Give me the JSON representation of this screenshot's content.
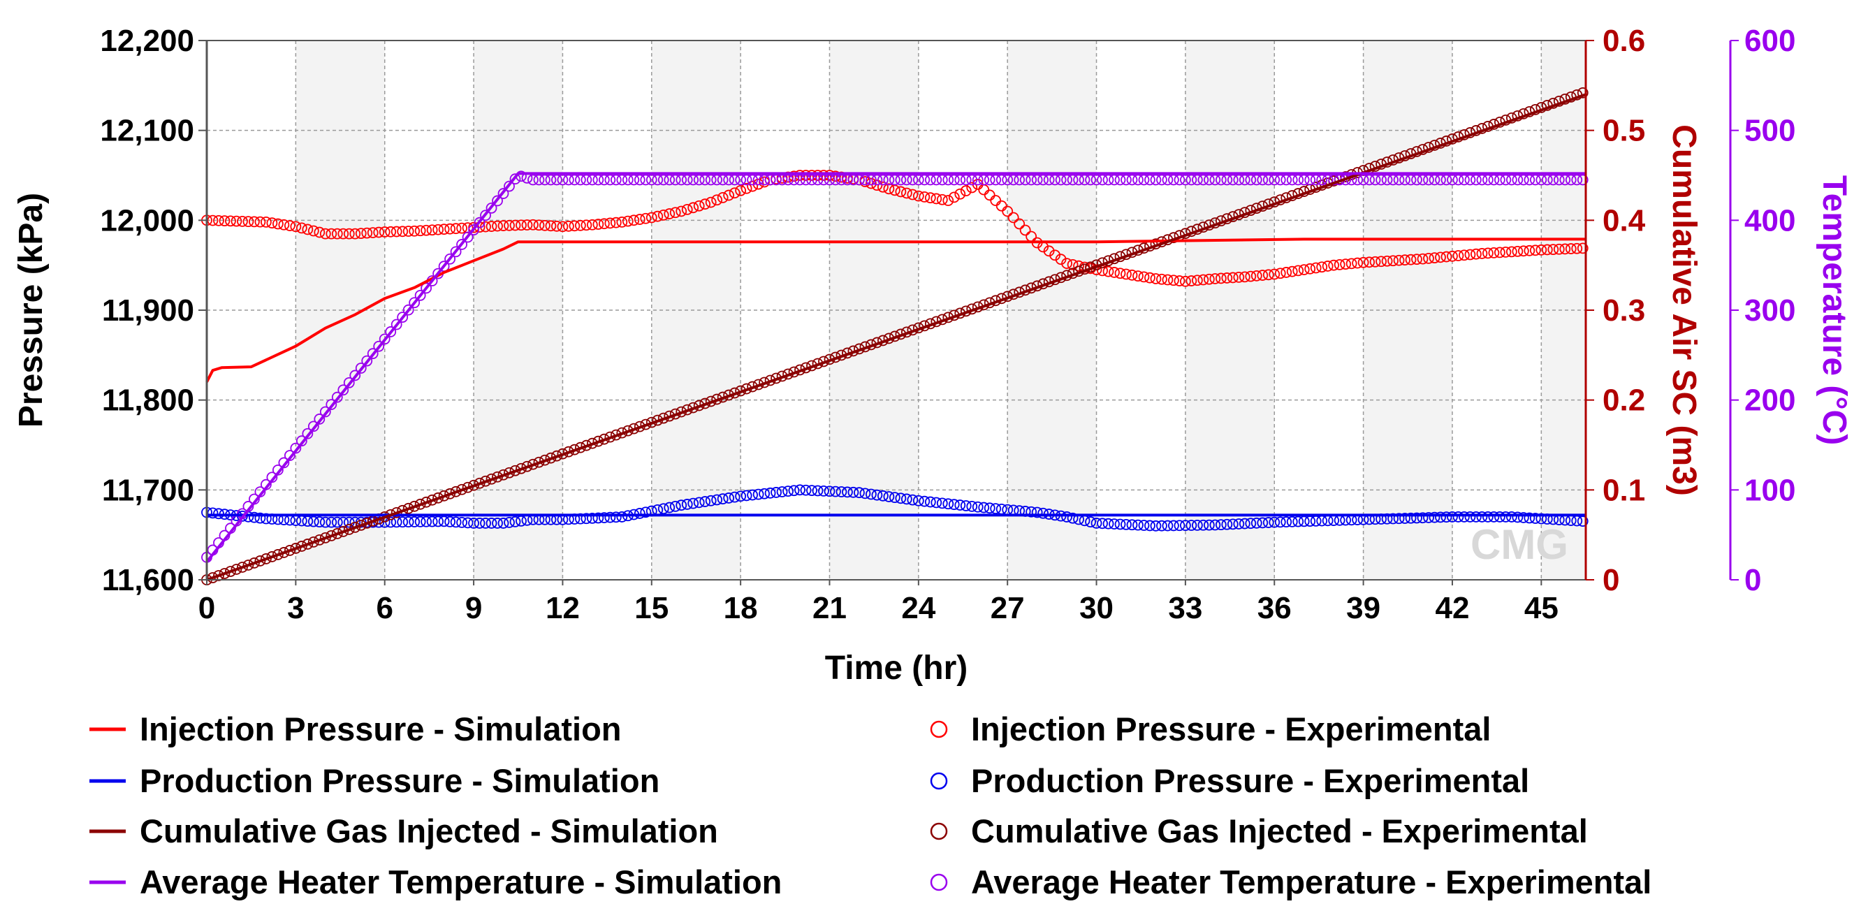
{
  "chart_data": {
    "type": "line",
    "watermark": "CMG",
    "x_axis": {
      "label": "Time (hr)",
      "range": [
        0,
        46.5
      ],
      "ticks": [
        0,
        3,
        6,
        9,
        12,
        15,
        18,
        21,
        24,
        27,
        30,
        33,
        36,
        39,
        42,
        45
      ]
    },
    "y_axes": [
      {
        "id": "pressure",
        "label": "Pressure (kPa)",
        "side": "left",
        "color": "#000000",
        "range": [
          11600,
          12200
        ],
        "ticks": [
          11600,
          11700,
          11800,
          11900,
          12000,
          12100,
          12200
        ],
        "tick_labels": [
          "11,600",
          "11,700",
          "11,800",
          "11,900",
          "12,000",
          "12,100",
          "12,200"
        ]
      },
      {
        "id": "air",
        "label": "Cumulative Air SC (m3)",
        "side": "right",
        "color": "#b00000",
        "range": [
          0,
          0.6
        ],
        "ticks": [
          0,
          0.1,
          0.2,
          0.3,
          0.4,
          0.5,
          0.6
        ],
        "tick_labels": [
          "0",
          "0.1",
          "0.2",
          "0.3",
          "0.4",
          "0.5",
          "0.6"
        ]
      },
      {
        "id": "temp",
        "label": "Temperature (°C)",
        "side": "right",
        "color": "#9900ee",
        "range": [
          0,
          600
        ],
        "ticks": [
          0,
          100,
          200,
          300,
          400,
          500,
          600
        ],
        "tick_labels": [
          "0",
          "100",
          "200",
          "300",
          "400",
          "500",
          "600"
        ]
      }
    ],
    "series": [
      {
        "name": "Injection Pressure - Simulation",
        "axis": "pressure",
        "style": "line",
        "color": "#ff0000",
        "points": [
          [
            0,
            11820
          ],
          [
            0.2,
            11833
          ],
          [
            0.5,
            11836
          ],
          [
            1.5,
            11837
          ],
          [
            3,
            11860
          ],
          [
            4,
            11880
          ],
          [
            5,
            11895
          ],
          [
            6,
            11913
          ],
          [
            7,
            11925
          ],
          [
            8,
            11942
          ],
          [
            9,
            11955
          ],
          [
            10,
            11968
          ],
          [
            10.5,
            11976
          ],
          [
            11,
            11976
          ],
          [
            30,
            11976
          ],
          [
            37,
            11979
          ],
          [
            46.5,
            11979
          ]
        ]
      },
      {
        "name": "Production Pressure - Simulation",
        "axis": "pressure",
        "style": "line",
        "color": "#0000ee",
        "points": [
          [
            0,
            11672
          ],
          [
            46.5,
            11672
          ]
        ]
      },
      {
        "name": "Cumulative Gas Injected - Simulation",
        "axis": "air",
        "style": "line",
        "color": "#8b0000",
        "points": [
          [
            0,
            0
          ],
          [
            46.5,
            0.54
          ]
        ]
      },
      {
        "name": "Average Heater Temperature - Simulation",
        "axis": "temp",
        "style": "line",
        "color": "#9900ee",
        "points": [
          [
            0,
            20
          ],
          [
            10.5,
            452
          ],
          [
            46.5,
            452
          ]
        ]
      },
      {
        "name": "Injection Pressure - Experimental",
        "axis": "pressure",
        "style": "marker",
        "color": "#ff0000",
        "points": [
          [
            0,
            12000
          ],
          [
            2,
            11998
          ],
          [
            3,
            11993
          ],
          [
            4,
            11985
          ],
          [
            5,
            11985
          ],
          [
            6,
            11987
          ],
          [
            7,
            11988
          ],
          [
            8,
            11990
          ],
          [
            9,
            11992
          ],
          [
            10,
            11994
          ],
          [
            11,
            11995
          ],
          [
            12,
            11993
          ],
          [
            13,
            11995
          ],
          [
            14,
            11998
          ],
          [
            15,
            12003
          ],
          [
            16,
            12010
          ],
          [
            17,
            12020
          ],
          [
            18,
            12033
          ],
          [
            19,
            12045
          ],
          [
            20,
            12050
          ],
          [
            21,
            12050
          ],
          [
            22,
            12045
          ],
          [
            23,
            12035
          ],
          [
            24,
            12027
          ],
          [
            25,
            12022
          ],
          [
            26,
            12040
          ],
          [
            27,
            12010
          ],
          [
            28,
            11975
          ],
          [
            29,
            11952
          ],
          [
            30,
            11945
          ],
          [
            31,
            11940
          ],
          [
            32,
            11935
          ],
          [
            33,
            11932
          ],
          [
            34,
            11935
          ],
          [
            35,
            11937
          ],
          [
            36,
            11940
          ],
          [
            37,
            11945
          ],
          [
            38,
            11950
          ],
          [
            39,
            11953
          ],
          [
            40,
            11955
          ],
          [
            41,
            11957
          ],
          [
            42,
            11960
          ],
          [
            43,
            11963
          ],
          [
            44,
            11965
          ],
          [
            45,
            11967
          ],
          [
            46.5,
            11969
          ]
        ]
      },
      {
        "name": "Production Pressure - Experimental",
        "axis": "pressure",
        "style": "marker",
        "color": "#0000ee",
        "points": [
          [
            0,
            11675
          ],
          [
            2,
            11668
          ],
          [
            4,
            11664
          ],
          [
            6,
            11664
          ],
          [
            8,
            11665
          ],
          [
            9,
            11663
          ],
          [
            10,
            11663
          ],
          [
            11,
            11667
          ],
          [
            12,
            11667
          ],
          [
            14,
            11670
          ],
          [
            16,
            11683
          ],
          [
            18,
            11693
          ],
          [
            20,
            11700
          ],
          [
            22,
            11697
          ],
          [
            24,
            11688
          ],
          [
            26,
            11681
          ],
          [
            28,
            11675
          ],
          [
            29,
            11670
          ],
          [
            30,
            11663
          ],
          [
            32,
            11660
          ],
          [
            34,
            11661
          ],
          [
            36,
            11664
          ],
          [
            38,
            11666
          ],
          [
            40,
            11668
          ],
          [
            42,
            11670
          ],
          [
            44,
            11670
          ],
          [
            46.5,
            11665
          ]
        ]
      },
      {
        "name": "Cumulative Gas Injected - Experimental",
        "axis": "air",
        "style": "marker",
        "color": "#8b0000",
        "points": [
          [
            0,
            0
          ],
          [
            46.5,
            0.543
          ]
        ]
      },
      {
        "name": "Average Heater Temperature - Experimental",
        "axis": "temp",
        "style": "marker",
        "color": "#9900ee",
        "points": [
          [
            0,
            25
          ],
          [
            10.5,
            450
          ],
          [
            11,
            445
          ],
          [
            39,
            445
          ],
          [
            40,
            445
          ],
          [
            46.5,
            445
          ]
        ]
      }
    ],
    "legend": {
      "placement": "bottom",
      "entries": [
        "Injection Pressure - Simulation",
        "Injection Pressure - Experimental",
        "Production Pressure - Simulation",
        "Production Pressure - Experimental",
        "Cumulative Gas Injected - Simulation",
        "Cumulative Gas Injected - Experimental",
        "Average Heater Temperature - Simulation",
        "Average Heater Temperature - Experimental"
      ]
    }
  }
}
